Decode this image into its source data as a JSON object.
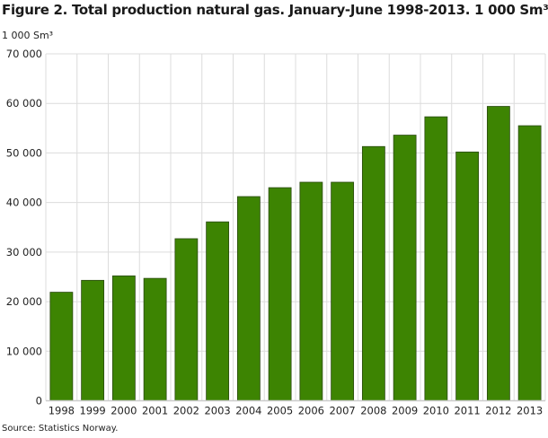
{
  "chart_data": {
    "type": "bar",
    "title": "Figure 2. Total production natural gas.  January-June 1998-2013. 1 000 Sm³",
    "ylabel": "1 000 Sm³",
    "xlabel": "",
    "categories": [
      "1998",
      "1999",
      "2000",
      "2001",
      "2002",
      "2003",
      "2004",
      "2005",
      "2006",
      "2007",
      "2008",
      "2009",
      "2010",
      "2011",
      "2012",
      "2013"
    ],
    "values": [
      21900,
      24300,
      25200,
      24700,
      32700,
      36100,
      41200,
      43000,
      44100,
      44100,
      51300,
      53600,
      57300,
      50200,
      59400,
      55500
    ],
    "ylim": [
      0,
      70000
    ],
    "yticks": [
      0,
      10000,
      20000,
      30000,
      40000,
      50000,
      60000,
      70000
    ],
    "ytick_labels": [
      "0",
      "10 000",
      "20 000",
      "30 000",
      "40 000",
      "50 000",
      "60 000",
      "70 000"
    ],
    "grid": true,
    "bar_color": "#3d8402",
    "bar_edge_color": "#2a4a10",
    "source": "Source: Statistics Norway."
  }
}
